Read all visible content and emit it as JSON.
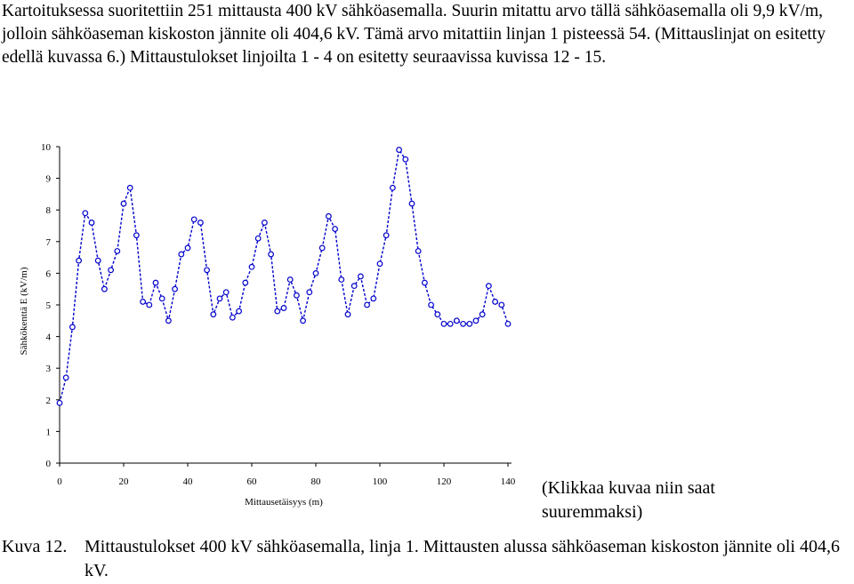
{
  "intro_text": "Kartoituksessa suoritettiin 251 mittausta 400 kV sähköasemalla. Suurin mitattu arvo tällä sähköasemalla oli 9,9 kV/m, jolloin sähköaseman kiskoston jännite oli 404,6 kV. Tämä arvo mitattiin linjan 1 pisteessä 54. (Mittauslinjat on esitetty edellä kuvassa 6.) Mittaustulokset linjoilta 1 - 4 on esitetty seuraavissa kuvissa 12 - 15.",
  "note": "(Klikkaa kuvaa niin saat suuremmaksi)",
  "caption": {
    "label": "Kuva 12.",
    "text": "Mittaustulokset 400 kV sähköasemalla, linja 1. Mittausten alussa sähköaseman kiskoston jännite oli 404,6 kV."
  },
  "chart_data": {
    "type": "line",
    "xlabel": "Mittausetäisyys (m)",
    "ylabel": "Sähkökenttä E (kV/m)",
    "xlim": [
      0,
      140
    ],
    "ylim": [
      0,
      10
    ],
    "xticks": [
      "0",
      "20",
      "40",
      "60",
      "80",
      "100",
      "120",
      "140"
    ],
    "yticks": [
      "0",
      "1",
      "2",
      "3",
      "4",
      "5",
      "6",
      "7",
      "8",
      "9",
      "10"
    ],
    "line_color": "#0000cc",
    "line_style": "dashed",
    "marker": "circle",
    "grid": false,
    "series": [
      {
        "x": [
          0,
          2,
          4,
          6,
          8,
          10,
          12,
          14,
          16,
          18,
          20,
          22,
          24,
          26,
          28,
          30,
          32,
          34,
          36,
          38,
          40,
          42,
          44,
          46,
          48,
          50,
          52,
          54,
          56,
          58,
          60,
          62,
          64,
          66,
          68,
          70,
          72,
          74,
          76,
          78,
          80,
          82,
          84,
          86,
          88,
          90,
          92,
          94,
          96,
          98,
          100,
          102,
          104,
          106,
          108,
          110,
          112,
          114,
          116,
          118,
          120,
          122,
          124,
          126,
          128,
          130,
          132,
          134,
          136,
          138,
          140
        ],
        "y": [
          1.9,
          2.7,
          4.3,
          6.4,
          7.9,
          7.6,
          6.4,
          5.5,
          6.1,
          6.7,
          8.2,
          8.7,
          7.2,
          5.1,
          5.0,
          5.7,
          5.2,
          4.5,
          5.5,
          6.6,
          6.8,
          7.7,
          7.6,
          6.1,
          4.7,
          5.2,
          5.4,
          4.6,
          4.8,
          5.7,
          6.2,
          7.1,
          7.6,
          6.6,
          4.8,
          4.9,
          5.8,
          5.3,
          4.5,
          5.4,
          6.0,
          6.8,
          7.8,
          7.4,
          5.8,
          4.7,
          5.6,
          5.9,
          5.0,
          5.2,
          6.3,
          7.2,
          8.7,
          9.9,
          9.6,
          8.2,
          6.7,
          5.7,
          5.0,
          4.7,
          4.4,
          4.4,
          4.5,
          4.4,
          4.4,
          4.5,
          4.7,
          5.6,
          5.1,
          5.0,
          4.4
        ]
      }
    ]
  }
}
